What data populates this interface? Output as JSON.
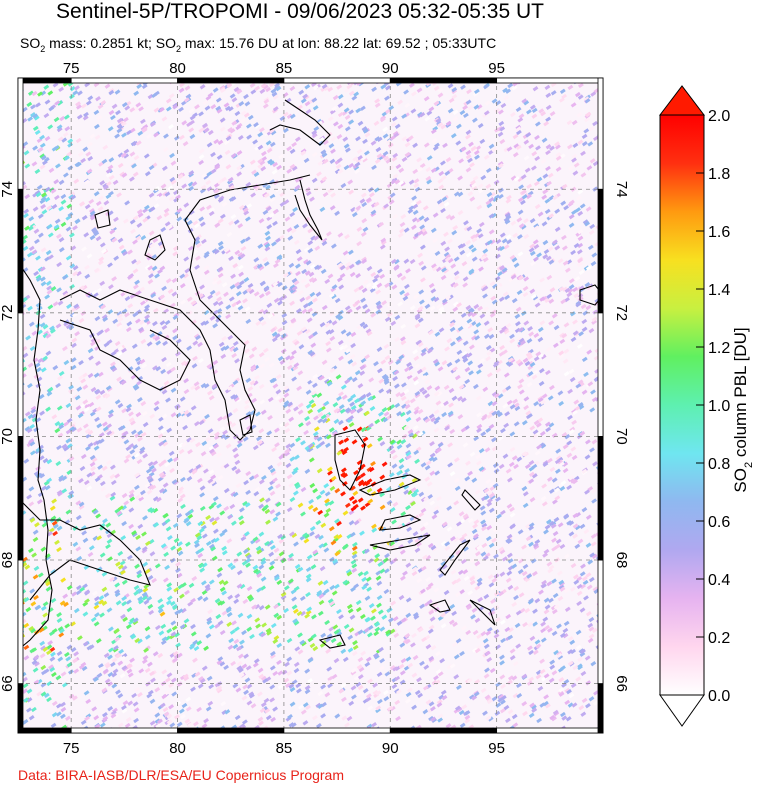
{
  "title": "Sentinel-5P/TROPOMI - 09/06/2023 05:32-05:35 UT",
  "subtitle": {
    "so2_mass_label": "SO",
    "so2_mass_rest": " mass: 0.2851 kt; SO",
    "so2_max_rest": " max: 15.76 DU at lon: 88.22 lat: 69.52 ; 05:33UTC",
    "sub": "2"
  },
  "credit": "Data: BIRA-IASB/DLR/ESA/EU Copernicus Program",
  "map": {
    "lon_range": [
      72.5,
      100
    ],
    "lat_range": [
      65.2,
      75.8
    ],
    "lon_ticks": [
      75,
      80,
      85,
      90,
      95
    ],
    "lat_ticks": [
      66,
      68,
      70,
      72,
      74
    ],
    "lon_tick_labels": [
      "75",
      "80",
      "85",
      "90",
      "95"
    ],
    "lat_tick_labels": [
      "66",
      "68",
      "70",
      "72",
      "74"
    ],
    "plume_center": {
      "lon": 88.22,
      "lat": 69.52
    }
  },
  "colorbar": {
    "label_prefix": "SO",
    "label_sub": "2",
    "label_rest": " column PBL [DU]",
    "ticks": [
      "0.0",
      "0.2",
      "0.4",
      "0.6",
      "0.8",
      "1.0",
      "1.2",
      "1.4",
      "1.6",
      "1.8",
      "2.0"
    ],
    "min": 0.0,
    "max": 2.0,
    "colors": [
      "#ffffff",
      "#ffd6ee",
      "#e6b3f0",
      "#b0a8f0",
      "#8fb8f0",
      "#6fe6f0",
      "#5ef0b0",
      "#60f060",
      "#c8f040",
      "#f8e020",
      "#ff9a10",
      "#ff3010",
      "#ff0000"
    ],
    "over_color": "#ff1a00",
    "under_color": "#ffffff"
  }
}
